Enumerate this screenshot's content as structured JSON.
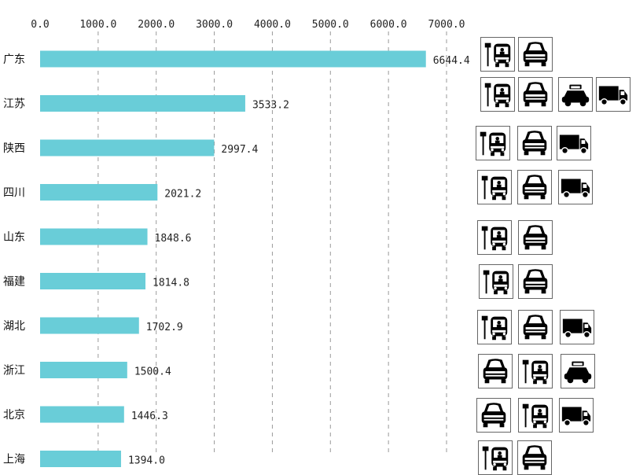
{
  "chart_data": {
    "type": "bar",
    "orientation": "horizontal",
    "categories": [
      "广东",
      "江苏",
      "陕西",
      "四川",
      "山东",
      "福建",
      "湖北",
      "浙江",
      "北京",
      "上海"
    ],
    "values": [
      6644.4,
      3533.2,
      2997.4,
      2021.2,
      1848.6,
      1814.8,
      1702.9,
      1500.4,
      1446.3,
      1394.0
    ],
    "value_labels": [
      "6644.4",
      "3533.2",
      "2997.4",
      "2021.2",
      "1848.6",
      "1814.8",
      "1702.9",
      "1500.4",
      "1446.3",
      "1394.0"
    ],
    "x_ticks": [
      "0.0",
      "1000.0",
      "2000.0",
      "3000.0",
      "4000.0",
      "5000.0",
      "6000.0",
      "7000.0"
    ],
    "xlim": [
      0,
      7000
    ],
    "axis_position": "top",
    "grid": "vertical dashed",
    "bar_color": "#69cdd8",
    "title": "",
    "xlabel": "",
    "ylabel": ""
  },
  "row_icons": [
    [
      "bus-icon",
      "car-icon"
    ],
    [
      "bus-icon",
      "car-icon",
      "taxi-icon",
      "truck-icon"
    ],
    [
      "bus-icon",
      "car-icon",
      "truck-icon"
    ],
    [
      "bus-icon",
      "car-icon",
      "truck-icon"
    ],
    [
      "bus-icon",
      "car-icon"
    ],
    [
      "bus-icon",
      "car-icon"
    ],
    [
      "bus-icon",
      "car-icon",
      "truck-icon"
    ],
    [
      "car-icon",
      "bus-icon",
      "taxi-icon"
    ],
    [
      "car-icon",
      "bus-icon",
      "truck-icon"
    ],
    [
      "bus-icon",
      "car-icon"
    ]
  ]
}
